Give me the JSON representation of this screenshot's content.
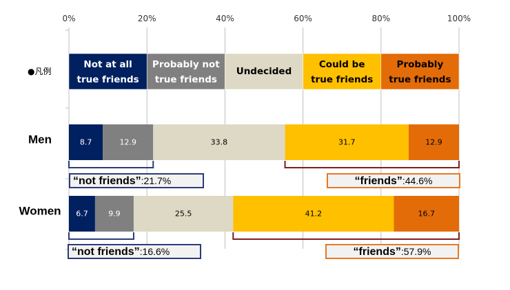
{
  "chart_data": {
    "type": "bar",
    "orientation": "horizontal",
    "stacked": true,
    "percent_axis": true,
    "xlim": [
      0,
      100
    ],
    "x_ticks": [
      "0%",
      "20%",
      "40%",
      "60%",
      "80%",
      "100%"
    ],
    "grid": true,
    "legend_title": "●凡例",
    "legend_position": "top",
    "categories": [
      "Men",
      "Women"
    ],
    "series": [
      {
        "name": "Not at all true friends",
        "color": "#002060",
        "text_color": "#ffffff",
        "values": [
          8.7,
          6.7
        ]
      },
      {
        "name": "Probably not true friends",
        "color": "#808080",
        "text_color": "#ffffff",
        "values": [
          12.9,
          9.9
        ]
      },
      {
        "name": "Undecided",
        "color": "#ddd9c4",
        "text_color": "#000000",
        "values": [
          33.8,
          25.5
        ]
      },
      {
        "name": "Could be true friends",
        "color": "#ffc000",
        "text_color": "#000000",
        "values": [
          31.7,
          41.2
        ]
      },
      {
        "name": "Probably true friends",
        "color": "#e36c09",
        "text_color": "#000000",
        "values": [
          12.9,
          16.7
        ]
      }
    ],
    "annotations": [
      {
        "row": "Men",
        "label": "“not friends”",
        "value": ":21.7%"
      },
      {
        "row": "Men",
        "label": "“friends”",
        "value": ":44.6%"
      },
      {
        "row": "Women",
        "label": "“not friends”",
        "value": ":16.6%"
      },
      {
        "row": "Women",
        "label": "“friends”",
        "value": ":57.9%"
      }
    ]
  },
  "colors": {
    "bracket_not_friends": "#2b3a7a",
    "bracket_friends": "#7f1d1d",
    "callout_border_not": "#2b3a7a",
    "callout_border_friends": "#e87722",
    "gridline": "#bfbfbf"
  }
}
